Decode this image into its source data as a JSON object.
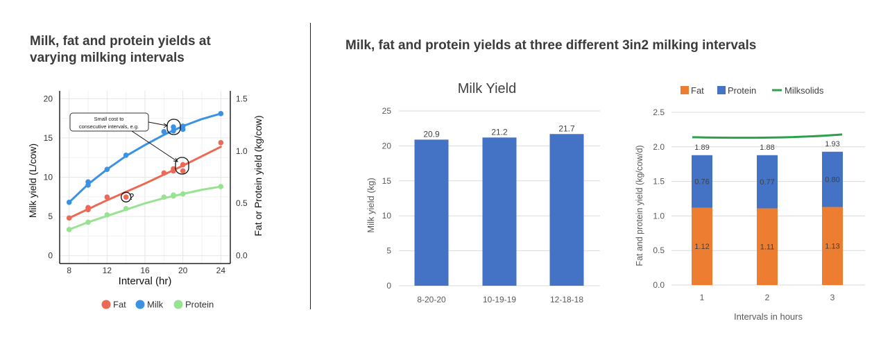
{
  "left_title": "Milk, fat and protein yields at varying milking intervals",
  "left_title_lines": [
    "Milk, fat and protein yields at",
    "varying milking intervals"
  ],
  "right_title": "Milk, fat and protein yields at three different 3in2 milking intervals",
  "colors": {
    "fat": "#ec6a55",
    "milk": "#3b92e4",
    "protein": "#97e391",
    "bar_blue": "#4472c4",
    "bar_orange": "#ed7d31",
    "milksolids": "#2aa14a"
  },
  "chart_data": [
    {
      "type": "scatter",
      "xlabel": "Interval (hr)",
      "ylabel": "Milk yield (L/cow)",
      "y2label": "Fat or Protein yield (kg/cow)",
      "xlim": [
        7,
        25
      ],
      "ylim": [
        -1,
        21
      ],
      "y2lim": [
        -0.075,
        1.575
      ],
      "xticks": [
        8,
        12,
        16,
        20,
        24
      ],
      "yticks": [
        0,
        5,
        10,
        15,
        20
      ],
      "y2ticks": [
        "0.0",
        "0.5",
        "1.0",
        "1.5"
      ],
      "grid": true,
      "legend_position": "bottom",
      "annotation": "Small cost to consecutive intervals, e.g.",
      "annotation_lines": [
        "Small cost to",
        "consecutive intervals, e.g."
      ],
      "question_mark": "?",
      "series": [
        {
          "name": "Fat",
          "axis": "right",
          "points": [
            [
              8,
              0.36
            ],
            [
              10,
              0.44
            ],
            [
              10,
              0.46
            ],
            [
              12,
              0.56
            ],
            [
              14,
              0.56
            ],
            [
              18,
              0.79
            ],
            [
              19,
              0.81
            ],
            [
              19,
              0.83
            ],
            [
              20,
              0.87
            ],
            [
              20,
              0.81
            ],
            [
              24,
              1.08
            ]
          ],
          "fit": [
            [
              8,
              0.36
            ],
            [
              12,
              0.53
            ],
            [
              16,
              0.69
            ],
            [
              20,
              0.86
            ],
            [
              24,
              1.04
            ]
          ]
        },
        {
          "name": "Milk",
          "axis": "left",
          "points": [
            [
              8,
              6.8
            ],
            [
              10,
              9.0
            ],
            [
              10,
              9.4
            ],
            [
              12,
              11.0
            ],
            [
              14,
              12.8
            ],
            [
              18,
              15.8
            ],
            [
              19,
              16.4
            ],
            [
              19,
              15.9
            ],
            [
              20,
              16.5
            ],
            [
              20,
              16.1
            ],
            [
              24,
              18.1
            ]
          ],
          "fit": [
            [
              8,
              6.8
            ],
            [
              10,
              9.1
            ],
            [
              12,
              11.0
            ],
            [
              14,
              12.7
            ],
            [
              16,
              14.1
            ],
            [
              18,
              15.4
            ],
            [
              20,
              16.5
            ],
            [
              22,
              17.4
            ],
            [
              24,
              18.1
            ]
          ]
        },
        {
          "name": "Protein",
          "axis": "right",
          "points": [
            [
              8,
              0.25
            ],
            [
              10,
              0.32
            ],
            [
              12,
              0.39
            ],
            [
              14,
              0.45
            ],
            [
              18,
              0.56
            ],
            [
              19,
              0.58
            ],
            [
              19,
              0.57
            ],
            [
              20,
              0.59
            ],
            [
              24,
              0.66
            ]
          ],
          "fit": [
            [
              8,
              0.25
            ],
            [
              10,
              0.32
            ],
            [
              12,
              0.38
            ],
            [
              14,
              0.44
            ],
            [
              16,
              0.5
            ],
            [
              18,
              0.55
            ],
            [
              20,
              0.59
            ],
            [
              22,
              0.63
            ],
            [
              24,
              0.66
            ]
          ]
        }
      ]
    },
    {
      "type": "bar",
      "title": "Milk Yield",
      "ylabel": "Milk yield (kg)",
      "categories": [
        "8-20-20",
        "10-19-19",
        "12-18-18"
      ],
      "values": [
        20.9,
        21.2,
        21.7
      ],
      "labels": [
        "20.9",
        "21.2",
        "21.7"
      ],
      "ylim": [
        0,
        25
      ],
      "yticks": [
        "0",
        "5",
        "10",
        "15",
        "20",
        "25"
      ],
      "grid": true
    },
    {
      "type": "bar",
      "stacked": true,
      "xlabel": "Intervals in hours",
      "ylabel": "Fat and protein yield (kg/cow/d)",
      "categories": [
        "1",
        "2",
        "3"
      ],
      "ylim": [
        0,
        2.5
      ],
      "yticks": [
        "0.0",
        "0.5",
        "1.0",
        "1.5",
        "2.0",
        "2.5"
      ],
      "legend_position": "top",
      "series": [
        {
          "name": "Fat",
          "values": [
            1.12,
            1.11,
            1.13
          ],
          "labels": [
            "1.12",
            "1.11",
            "1.13"
          ]
        },
        {
          "name": "Protein",
          "values": [
            0.76,
            0.77,
            0.8
          ],
          "labels": [
            "0.76",
            "0.77",
            "0.80"
          ]
        },
        {
          "name": "Milksolids",
          "type": "line",
          "values": [
            2.14,
            2.13,
            2.18
          ]
        }
      ],
      "totals": [
        "1.89",
        "1.88",
        "1.93"
      ]
    }
  ]
}
